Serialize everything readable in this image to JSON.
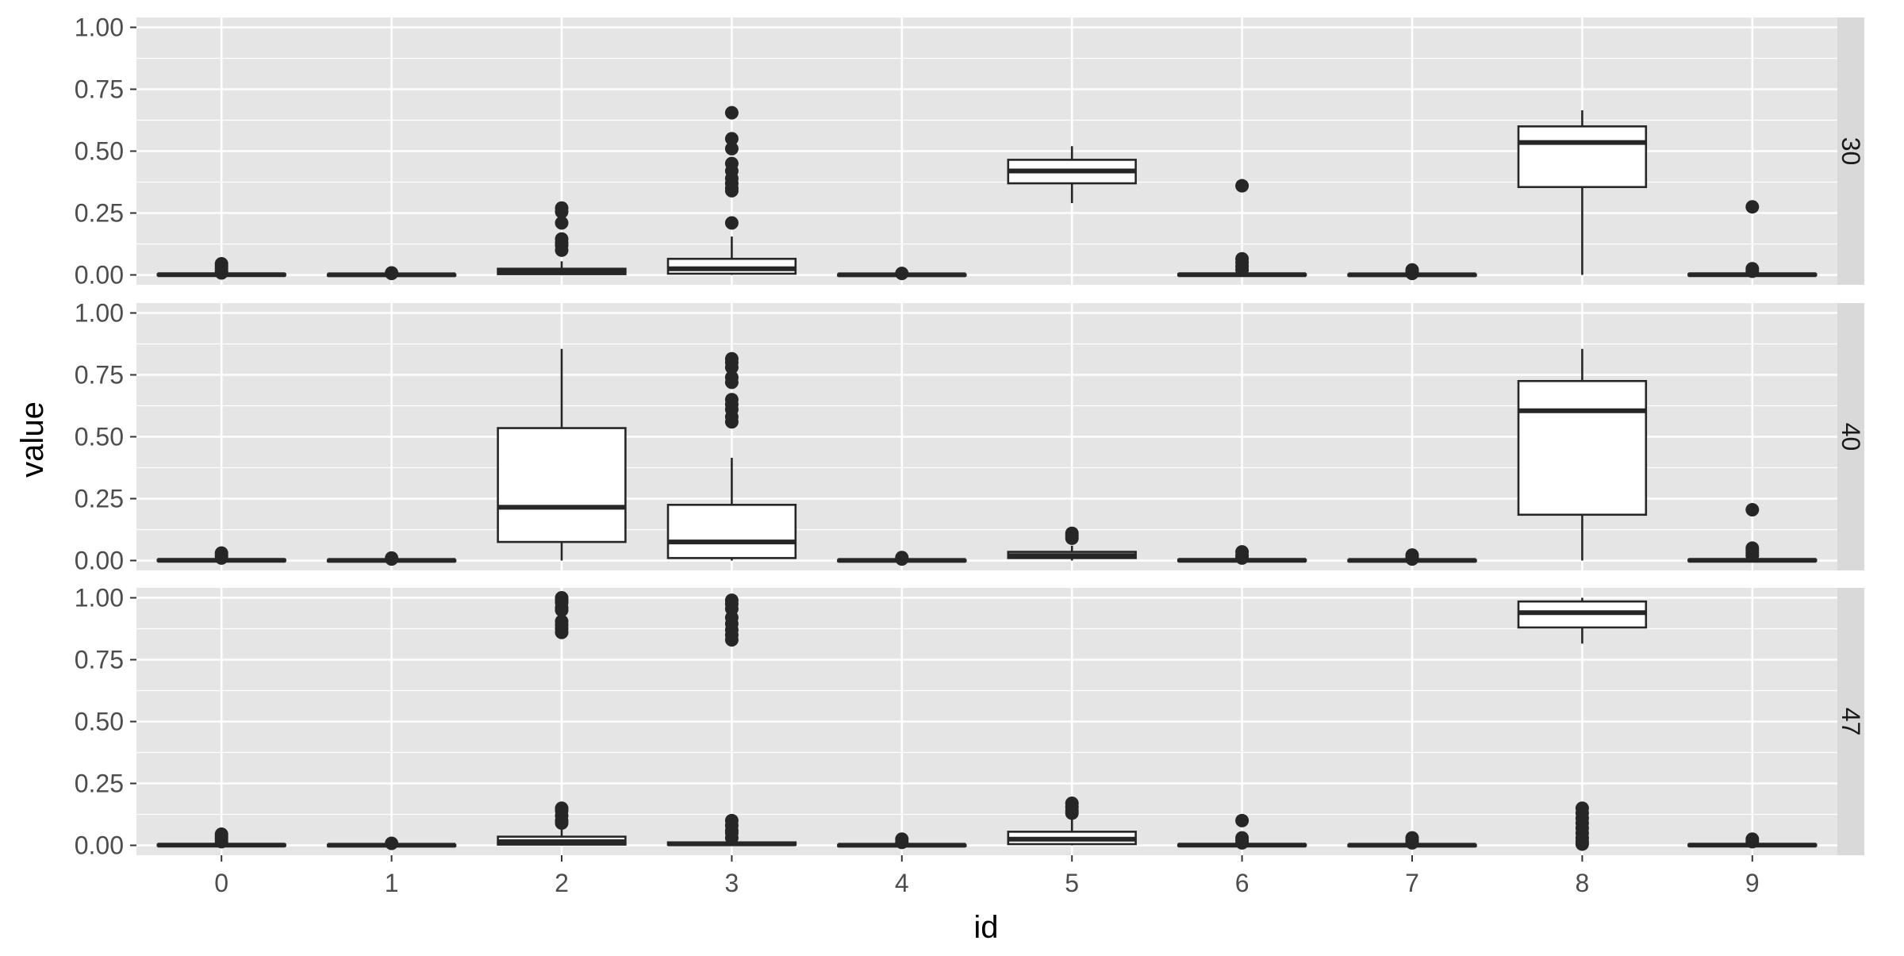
{
  "chart_data": {
    "type": "boxplot",
    "xlabel": "id",
    "ylabel": "value",
    "categories": [
      "0",
      "1",
      "2",
      "3",
      "4",
      "5",
      "6",
      "7",
      "8",
      "9"
    ],
    "ylim": [
      -0.04,
      1.04
    ],
    "y_ticks": [
      {
        "value": 0,
        "label": "0.00"
      },
      {
        "value": 0.25,
        "label": "0.25"
      },
      {
        "value": 0.5,
        "label": "0.50"
      },
      {
        "value": 0.75,
        "label": "0.75"
      },
      {
        "value": 1,
        "label": "1.00"
      }
    ],
    "grid": true,
    "facet_layout": "rows",
    "panel_background": "#e5e5e5",
    "strip_background": "#d9d9d9",
    "grid_color": "#ffffff",
    "box_fill": "#ffffff",
    "box_line": "#262626",
    "panels": [
      {
        "label": "30",
        "boxes": [
          {
            "id": "0",
            "q1": 0,
            "median": 0.001,
            "q3": 0.003,
            "whisker_low": 0,
            "whisker_high": 0.007,
            "outliers": [
              0.045,
              0.035,
              0.025,
              0.015,
              0.008
            ]
          },
          {
            "id": "1",
            "q1": 0,
            "median": 0.0005,
            "q3": 0.002,
            "whisker_low": 0,
            "whisker_high": 0.004,
            "outliers": [
              0.008,
              0.006
            ]
          },
          {
            "id": "2",
            "q1": 0.003,
            "median": 0.012,
            "q3": 0.025,
            "whisker_low": 0,
            "whisker_high": 0.055,
            "outliers": [
              0.27,
              0.255,
              0.21,
              0.145,
              0.13,
              0.12,
              0.1
            ]
          },
          {
            "id": "3",
            "q1": 0.005,
            "median": 0.025,
            "q3": 0.065,
            "whisker_low": 0,
            "whisker_high": 0.155,
            "outliers": [
              0.655,
              0.55,
              0.51,
              0.45,
              0.42,
              0.39,
              0.37,
              0.35,
              0.34,
              0.21
            ]
          },
          {
            "id": "4",
            "q1": 0,
            "median": 0.0005,
            "q3": 0.002,
            "whisker_low": 0,
            "whisker_high": 0.004,
            "outliers": [
              0.006
            ]
          },
          {
            "id": "5",
            "q1": 0.37,
            "median": 0.42,
            "q3": 0.465,
            "whisker_low": 0.29,
            "whisker_high": 0.52,
            "outliers": []
          },
          {
            "id": "6",
            "q1": 0,
            "median": 0.001,
            "q3": 0.003,
            "whisker_low": 0,
            "whisker_high": 0.007,
            "outliers": [
              0.36,
              0.065,
              0.05,
              0.035,
              0.02
            ]
          },
          {
            "id": "7",
            "q1": 0,
            "median": 0.0005,
            "q3": 0.002,
            "whisker_low": 0,
            "whisker_high": 0.004,
            "outliers": [
              0.02,
              0.012,
              0.006
            ]
          },
          {
            "id": "8",
            "q1": 0.355,
            "median": 0.535,
            "q3": 0.6,
            "whisker_low": 0,
            "whisker_high": 0.665,
            "outliers": []
          },
          {
            "id": "9",
            "q1": 0,
            "median": 0.001,
            "q3": 0.003,
            "whisker_low": 0,
            "whisker_high": 0.007,
            "outliers": [
              0.275,
              0.025,
              0.015
            ]
          }
        ]
      },
      {
        "label": "40",
        "boxes": [
          {
            "id": "0",
            "q1": 0,
            "median": 0.001,
            "q3": 0.003,
            "whisker_low": 0,
            "whisker_high": 0.007,
            "outliers": [
              0.03,
              0.02,
              0.01
            ]
          },
          {
            "id": "1",
            "q1": 0,
            "median": 0.0005,
            "q3": 0.002,
            "whisker_low": 0,
            "whisker_high": 0.004,
            "outliers": [
              0.01,
              0.006
            ]
          },
          {
            "id": "2",
            "q1": 0.075,
            "median": 0.215,
            "q3": 0.535,
            "whisker_low": 0,
            "whisker_high": 0.855,
            "outliers": []
          },
          {
            "id": "3",
            "q1": 0.01,
            "median": 0.075,
            "q3": 0.225,
            "whisker_low": 0,
            "whisker_high": 0.415,
            "outliers": [
              0.815,
              0.8,
              0.78,
              0.74,
              0.72,
              0.65,
              0.63,
              0.61,
              0.58,
              0.56
            ]
          },
          {
            "id": "4",
            "q1": 0,
            "median": 0.0005,
            "q3": 0.002,
            "whisker_low": 0,
            "whisker_high": 0.004,
            "outliers": [
              0.012,
              0.006
            ]
          },
          {
            "id": "5",
            "q1": 0.01,
            "median": 0.02,
            "q3": 0.035,
            "whisker_low": 0,
            "whisker_high": 0.06,
            "outliers": [
              0.11,
              0.1,
              0.09
            ]
          },
          {
            "id": "6",
            "q1": 0,
            "median": 0.001,
            "q3": 0.003,
            "whisker_low": 0,
            "whisker_high": 0.007,
            "outliers": [
              0.035,
              0.02,
              0.01
            ]
          },
          {
            "id": "7",
            "q1": 0,
            "median": 0.0005,
            "q3": 0.002,
            "whisker_low": 0,
            "whisker_high": 0.004,
            "outliers": [
              0.022,
              0.012,
              0.006
            ]
          },
          {
            "id": "8",
            "q1": 0.185,
            "median": 0.605,
            "q3": 0.725,
            "whisker_low": 0,
            "whisker_high": 0.855,
            "outliers": []
          },
          {
            "id": "9",
            "q1": 0,
            "median": 0.001,
            "q3": 0.003,
            "whisker_low": 0,
            "whisker_high": 0.007,
            "outliers": [
              0.205,
              0.05,
              0.04,
              0.03,
              0.02
            ]
          }
        ]
      },
      {
        "label": "47",
        "boxes": [
          {
            "id": "0",
            "q1": 0,
            "median": 0.001,
            "q3": 0.003,
            "whisker_low": 0,
            "whisker_high": 0.007,
            "outliers": [
              0.045,
              0.035,
              0.025,
              0.015
            ]
          },
          {
            "id": "1",
            "q1": 0,
            "median": 0.0005,
            "q3": 0.002,
            "whisker_low": 0,
            "whisker_high": 0.004,
            "outliers": [
              0.008
            ]
          },
          {
            "id": "2",
            "q1": 0.003,
            "median": 0.015,
            "q3": 0.035,
            "whisker_low": 0,
            "whisker_high": 0.075,
            "outliers": [
              1.0,
              0.99,
              0.98,
              0.96,
              0.95,
              0.905,
              0.89,
              0.875,
              0.86,
              0.15,
              0.14,
              0.12,
              0.1,
              0.09
            ]
          },
          {
            "id": "3",
            "q1": 0.002,
            "median": 0.006,
            "q3": 0.012,
            "whisker_low": 0,
            "whisker_high": 0.02,
            "outliers": [
              0.99,
              0.975,
              0.955,
              0.92,
              0.895,
              0.87,
              0.85,
              0.83,
              0.1,
              0.08,
              0.06,
              0.05,
              0.03
            ]
          },
          {
            "id": "4",
            "q1": 0,
            "median": 0.0005,
            "q3": 0.002,
            "whisker_low": 0,
            "whisker_high": 0.004,
            "outliers": [
              0.025,
              0.012
            ]
          },
          {
            "id": "5",
            "q1": 0.005,
            "median": 0.025,
            "q3": 0.055,
            "whisker_low": 0,
            "whisker_high": 0.11,
            "outliers": [
              0.17,
              0.155,
              0.14,
              0.13
            ]
          },
          {
            "id": "6",
            "q1": 0,
            "median": 0.001,
            "q3": 0.003,
            "whisker_low": 0,
            "whisker_high": 0.007,
            "outliers": [
              0.1,
              0.03,
              0.02,
              0.01
            ]
          },
          {
            "id": "7",
            "q1": 0,
            "median": 0.0005,
            "q3": 0.002,
            "whisker_low": 0,
            "whisker_high": 0.004,
            "outliers": [
              0.03,
              0.02,
              0.01
            ]
          },
          {
            "id": "8",
            "q1": 0.88,
            "median": 0.94,
            "q3": 0.985,
            "whisker_low": 0.815,
            "whisker_high": 1.0,
            "outliers": [
              0.15,
              0.13,
              0.11,
              0.09,
              0.07,
              0.05,
              0.03,
              0.015,
              0.005
            ]
          },
          {
            "id": "9",
            "q1": 0,
            "median": 0.001,
            "q3": 0.003,
            "whisker_low": 0,
            "whisker_high": 0.007,
            "outliers": [
              0.025,
              0.015
            ]
          }
        ]
      }
    ]
  }
}
